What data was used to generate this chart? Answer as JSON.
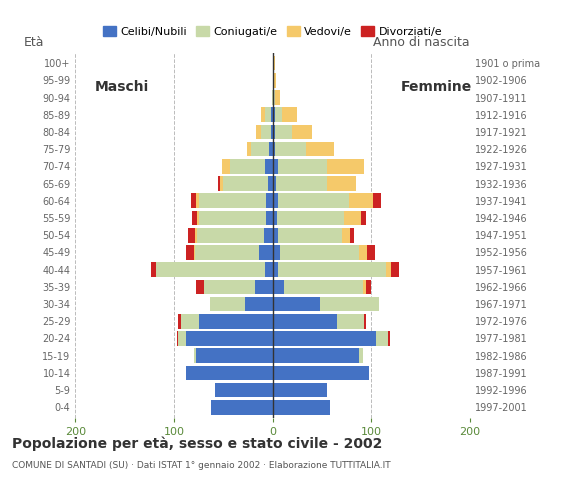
{
  "age_groups": [
    "0-4",
    "5-9",
    "10-14",
    "15-19",
    "20-24",
    "25-29",
    "30-34",
    "35-39",
    "40-44",
    "45-49",
    "50-54",
    "55-59",
    "60-64",
    "65-69",
    "70-74",
    "75-79",
    "80-84",
    "85-89",
    "90-94",
    "95-99",
    "100+"
  ],
  "birth_years": [
    "1997-2001",
    "1992-1996",
    "1987-1991",
    "1982-1986",
    "1977-1981",
    "1972-1976",
    "1967-1971",
    "1962-1966",
    "1957-1961",
    "1952-1956",
    "1947-1951",
    "1942-1946",
    "1937-1941",
    "1932-1936",
    "1927-1931",
    "1922-1926",
    "1917-1921",
    "1912-1916",
    "1907-1911",
    "1902-1906",
    "1901 o prima"
  ],
  "males": {
    "celibe": [
      62,
      58,
      88,
      78,
      88,
      75,
      28,
      18,
      8,
      14,
      9,
      7,
      7,
      5,
      8,
      4,
      2,
      2,
      0,
      0,
      0
    ],
    "coniugato": [
      0,
      0,
      0,
      2,
      8,
      18,
      35,
      52,
      110,
      65,
      68,
      68,
      68,
      45,
      35,
      18,
      10,
      6,
      1,
      0,
      0
    ],
    "vedovo": [
      0,
      0,
      0,
      0,
      0,
      0,
      0,
      0,
      0,
      1,
      2,
      2,
      3,
      3,
      8,
      4,
      5,
      4,
      0,
      0,
      0
    ],
    "divorziato": [
      0,
      0,
      0,
      0,
      1,
      3,
      0,
      8,
      5,
      8,
      7,
      5,
      5,
      2,
      0,
      0,
      0,
      0,
      0,
      0,
      0
    ]
  },
  "females": {
    "celibe": [
      58,
      55,
      98,
      88,
      105,
      65,
      48,
      12,
      5,
      8,
      5,
      4,
      5,
      3,
      5,
      2,
      2,
      2,
      0,
      0,
      0
    ],
    "coniugato": [
      0,
      0,
      0,
      4,
      12,
      28,
      60,
      80,
      110,
      80,
      65,
      68,
      72,
      52,
      50,
      32,
      18,
      8,
      2,
      0,
      0
    ],
    "vedovo": [
      0,
      0,
      0,
      0,
      0,
      0,
      0,
      3,
      5,
      8,
      8,
      18,
      25,
      30,
      38,
      28,
      20,
      15,
      5,
      3,
      2
    ],
    "divorziato": [
      0,
      0,
      0,
      0,
      2,
      2,
      0,
      5,
      8,
      8,
      5,
      5,
      8,
      0,
      0,
      0,
      0,
      0,
      0,
      0,
      0
    ]
  },
  "colors": {
    "celibe": "#4472C4",
    "coniugato": "#c8d9a8",
    "vedovo": "#f5c96a",
    "divorziato": "#cc2222"
  },
  "xlim": 200,
  "title": "Popolazione per età, sesso e stato civile - 2002",
  "subtitle": "COMUNE DI SANTADI (SU) · Dati ISTAT 1° gennaio 2002 · Elaborazione TUTTITALIA.IT",
  "ylabel_left": "Età",
  "ylabel_right": "Anno di nascita",
  "legend_labels": [
    "Celibi/Nubili",
    "Coniugati/e",
    "Vedovi/e",
    "Divorziati/e"
  ],
  "background_color": "#ffffff",
  "grid_color": "#bbbbbb"
}
